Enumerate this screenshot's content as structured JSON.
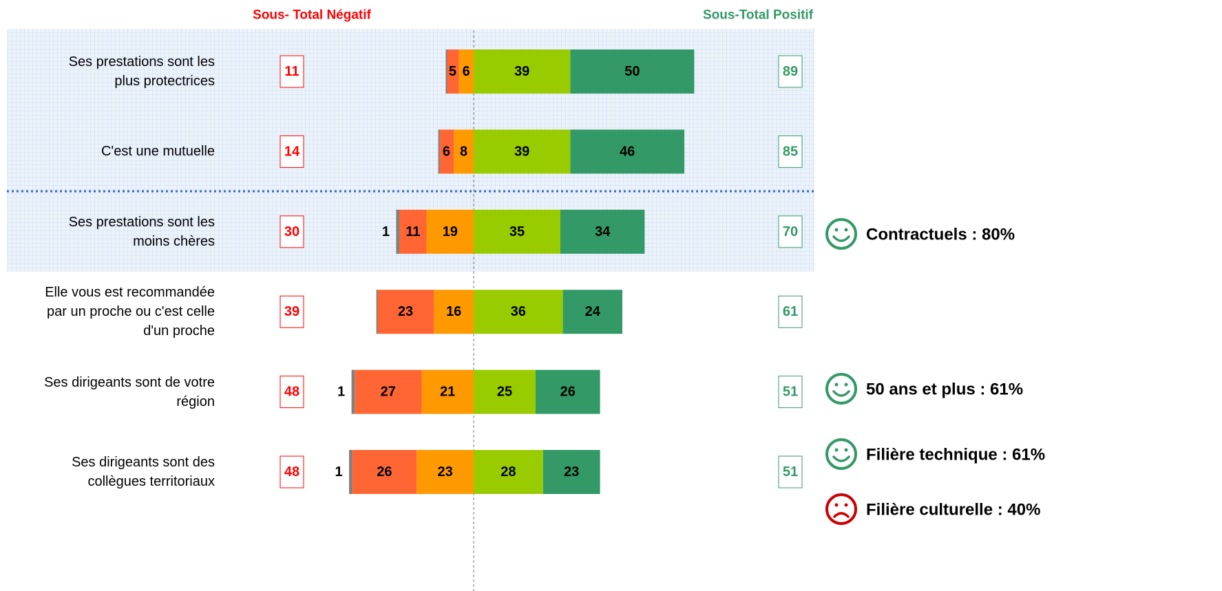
{
  "chart_data": {
    "type": "diverging-bar",
    "negative_header": "Sous- Total Négatif",
    "positive_header": "Sous-Total Positif",
    "negative_color": "#ff0000",
    "positive_color": "#339966",
    "categories": [
      "Ses prestations sont les\nplus protectrices",
      "C'est une mutuelle",
      "Ses prestations sont les\nmoins chères",
      "Elle vous est recommandée\npar un proche ou c'est celle\nd'un proche",
      "Ses dirigeants sont de votre\nrégion",
      "Ses dirigeants sont des\ncollègues territoriaux"
    ],
    "series": [
      {
        "color": "#808080",
        "values": [
          0,
          0,
          1,
          0,
          1,
          1
        ]
      },
      {
        "color": "#ff6633",
        "values": [
          5,
          6,
          11,
          23,
          27,
          26
        ]
      },
      {
        "color": "#ff9900",
        "values": [
          6,
          8,
          19,
          16,
          21,
          23
        ]
      },
      {
        "color": "#99cc00",
        "values": [
          39,
          39,
          35,
          36,
          25,
          28
        ]
      },
      {
        "color": "#339966",
        "values": [
          50,
          46,
          34,
          24,
          26,
          23
        ]
      }
    ],
    "negative_totals": [
      11,
      14,
      30,
      39,
      48,
      48
    ],
    "positive_totals": [
      89,
      85,
      70,
      61,
      51,
      51
    ],
    "annotations": [
      {
        "text": "Contractuels : 80%",
        "icon": "smile",
        "color": "#339966"
      },
      {
        "text": "50 ans et plus : 61%",
        "icon": "smile",
        "color": "#339966"
      },
      {
        "text": "Filière technique : 61%",
        "icon": "smile",
        "color": "#339966"
      },
      {
        "text": "Filière culturelle : 40%",
        "icon": "frown",
        "color": "#cc0000"
      }
    ]
  }
}
